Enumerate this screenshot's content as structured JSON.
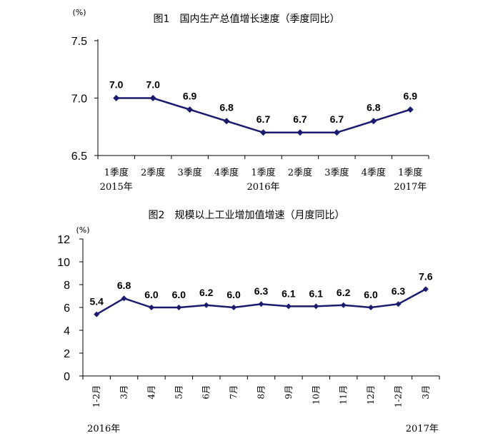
{
  "colors": {
    "series": "#1a1a6e",
    "axis": "#000000"
  },
  "chart_data": [
    {
      "type": "line",
      "title": "图1　国内生产总值增长速度（季度同比）",
      "unit": "(%)",
      "categories": [
        "1季度",
        "2季度",
        "3季度",
        "4季度",
        "1季度",
        "2季度",
        "3季度",
        "4季度",
        "1季度"
      ],
      "year_labels": [
        {
          "index": 0,
          "text": "2015年"
        },
        {
          "index": 4,
          "text": "2016年"
        },
        {
          "index": 8,
          "text": "2017年"
        }
      ],
      "values": [
        7.0,
        7.0,
        6.9,
        6.8,
        6.7,
        6.7,
        6.7,
        6.8,
        6.9
      ],
      "value_labels": [
        "7.0",
        "7.0",
        "6.9",
        "6.8",
        "6.7",
        "6.7",
        "6.7",
        "6.8",
        "6.9"
      ],
      "yticks": [
        "6.5",
        "7.0",
        "7.5"
      ],
      "ylim": [
        6.5,
        7.5
      ]
    },
    {
      "type": "line",
      "title": "图2　规模以上工业增加值增速（月度同比）",
      "unit": "(%)",
      "categories": [
        "1-2月",
        "3月",
        "4月",
        "5月",
        "6月",
        "7月",
        "8月",
        "9月",
        "10月",
        "11月",
        "12月",
        "1-2月",
        "3月"
      ],
      "year_labels": [
        {
          "index": 0,
          "text": "2016年"
        },
        {
          "index": 12,
          "text": "2017年"
        }
      ],
      "values": [
        5.4,
        6.8,
        6.0,
        6.0,
        6.2,
        6.0,
        6.3,
        6.1,
        6.1,
        6.2,
        6.0,
        6.3,
        7.6
      ],
      "value_labels": [
        "5.4",
        "6.8",
        "6.0",
        "6.0",
        "6.2",
        "6.0",
        "6.3",
        "6.1",
        "6.1",
        "6.2",
        "6.0",
        "6.3",
        "7.6"
      ],
      "yticks": [
        "0",
        "2",
        "4",
        "6",
        "8",
        "10",
        "12"
      ],
      "ylim": [
        0,
        12
      ]
    }
  ]
}
